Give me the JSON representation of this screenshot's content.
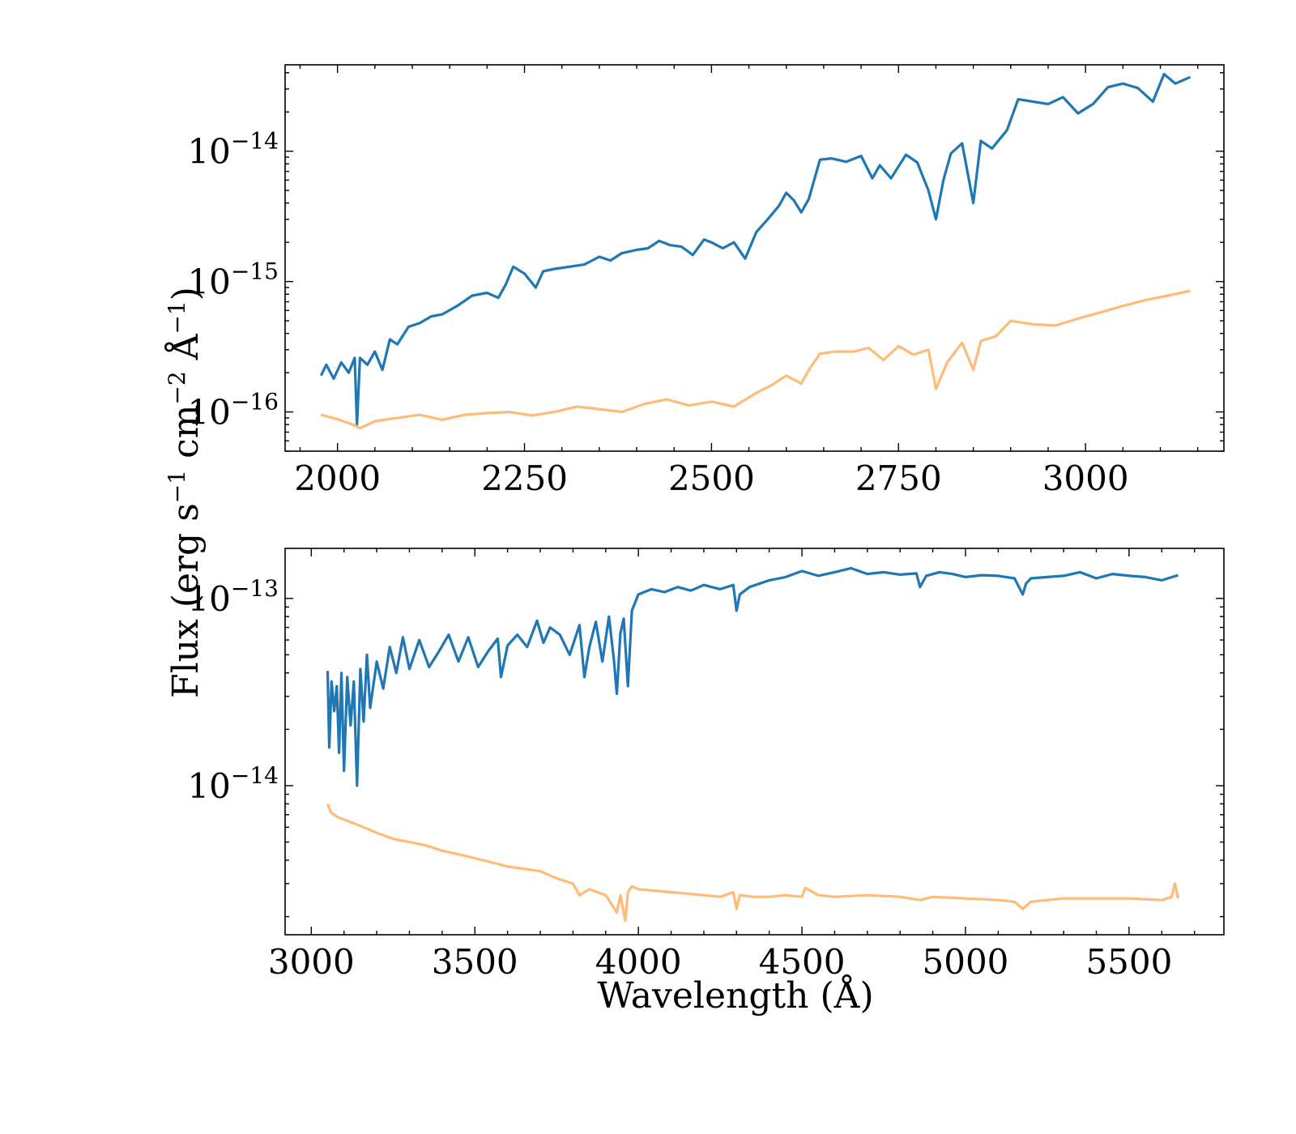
{
  "chart_data": [
    {
      "type": "line",
      "panel": "top",
      "xlabel": "",
      "ylabel": "Flux (erg s$^{-1}$ cm$^{-2}$ Å$^{-1}$)",
      "ylabel_parts": [
        "Flux (erg s",
        "−1",
        " cm",
        "−2",
        " Å",
        "−1",
        ")"
      ],
      "xlim": [
        1930,
        3185
      ],
      "ylim": [
        5e-17,
        4.6e-14
      ],
      "yscale": "log",
      "xticks": [
        2000,
        2250,
        2500,
        2750,
        3000
      ],
      "xtick_labels": [
        "2000",
        "2250",
        "2500",
        "2750",
        "3000"
      ],
      "yticks": [
        1e-16,
        1e-15,
        1e-14
      ],
      "ytick_labels": [
        {
          "base": "10",
          "exp": "−16"
        },
        {
          "base": "10",
          "exp": "−15"
        },
        {
          "base": "10",
          "exp": "−14"
        }
      ],
      "series": [
        {
          "color": "#1f77b4",
          "x": [
            1978,
            1985,
            1995,
            2005,
            2015,
            2023,
            2026,
            2030,
            2040,
            2050,
            2060,
            2070,
            2080,
            2095,
            2110,
            2125,
            2140,
            2160,
            2180,
            2200,
            2215,
            2225,
            2235,
            2250,
            2265,
            2275,
            2290,
            2310,
            2330,
            2350,
            2365,
            2380,
            2400,
            2415,
            2430,
            2445,
            2460,
            2475,
            2490,
            2500,
            2515,
            2530,
            2545,
            2560,
            2575,
            2590,
            2600,
            2610,
            2620,
            2630,
            2645,
            2660,
            2680,
            2700,
            2715,
            2725,
            2740,
            2760,
            2775,
            2790,
            2800,
            2810,
            2820,
            2835,
            2850,
            2860,
            2875,
            2895,
            2910,
            2930,
            2950,
            2970,
            2990,
            3010,
            3030,
            3050,
            3070,
            3090,
            3105,
            3120,
            3140
          ],
          "y": [
            1.9e-16,
            2.3e-16,
            1.8e-16,
            2.4e-16,
            2e-16,
            2.6e-16,
            8e-17,
            2.6e-16,
            2.3e-16,
            2.9e-16,
            2.1e-16,
            3.6e-16,
            3.3e-16,
            4.5e-16,
            4.8e-16,
            5.4e-16,
            5.6e-16,
            6.5e-16,
            7.8e-16,
            8.2e-16,
            7.5e-16,
            9.5e-16,
            1.3e-15,
            1.15e-15,
            9e-16,
            1.2e-15,
            1.25e-15,
            1.3e-15,
            1.35e-15,
            1.55e-15,
            1.45e-15,
            1.65e-15,
            1.75e-15,
            1.8e-15,
            2.05e-15,
            1.9e-15,
            1.85e-15,
            1.6e-15,
            2.1e-15,
            2e-15,
            1.8e-15,
            2e-15,
            1.5e-15,
            2.4e-15,
            3e-15,
            3.8e-15,
            4.8e-15,
            4.2e-15,
            3.4e-15,
            4.3e-15,
            8.6e-15,
            8.8e-15,
            8.3e-15,
            9.2e-15,
            6.2e-15,
            7.8e-15,
            6.2e-15,
            9.4e-15,
            8.2e-15,
            5e-15,
            3e-15,
            6e-15,
            9.6e-15,
            1.15e-14,
            4e-15,
            1.2e-14,
            1.05e-14,
            1.45e-14,
            2.5e-14,
            2.4e-14,
            2.3e-14,
            2.6e-14,
            1.95e-14,
            2.3e-14,
            3.1e-14,
            3.3e-14,
            3.05e-14,
            2.4e-14,
            3.9e-14,
            3.3e-14,
            3.7e-14
          ]
        },
        {
          "color": "#ffbb78",
          "x": [
            1978,
            2000,
            2020,
            2030,
            2050,
            2080,
            2110,
            2140,
            2170,
            2200,
            2230,
            2260,
            2290,
            2320,
            2350,
            2380,
            2410,
            2440,
            2470,
            2500,
            2530,
            2560,
            2580,
            2600,
            2620,
            2630,
            2645,
            2665,
            2690,
            2710,
            2730,
            2750,
            2770,
            2790,
            2800,
            2815,
            2835,
            2850,
            2860,
            2880,
            2900,
            2930,
            2960,
            2990,
            3020,
            3050,
            3080,
            3110,
            3140
          ],
          "y": [
            9.5e-17,
            8.8e-17,
            8e-17,
            7.5e-17,
            8.5e-17,
            9e-17,
            9.5e-17,
            8.7e-17,
            9.5e-17,
            9.8e-17,
            1e-16,
            9.4e-17,
            1e-16,
            1.1e-16,
            1.05e-16,
            1e-16,
            1.15e-16,
            1.25e-16,
            1.12e-16,
            1.2e-16,
            1.1e-16,
            1.4e-16,
            1.6e-16,
            1.9e-16,
            1.65e-16,
            2.1e-16,
            2.8e-16,
            2.9e-16,
            2.9e-16,
            3.1e-16,
            2.5e-16,
            3.2e-16,
            2.75e-16,
            3e-16,
            1.5e-16,
            2.4e-16,
            3.4e-16,
            2.1e-16,
            3.5e-16,
            3.8e-16,
            5e-16,
            4.7e-16,
            4.6e-16,
            5.2e-16,
            5.8e-16,
            6.5e-16,
            7.2e-16,
            7.8e-16,
            8.5e-16
          ]
        }
      ]
    },
    {
      "type": "line",
      "panel": "bottom",
      "xlabel": "Wavelength (Å)",
      "ylabel": "",
      "xlim": [
        2920,
        5790
      ],
      "ylim": [
        1.6e-15,
        1.85e-13
      ],
      "yscale": "log",
      "xticks": [
        3000,
        3500,
        4000,
        4500,
        5000,
        5500
      ],
      "xtick_labels": [
        "3000",
        "3500",
        "4000",
        "4500",
        "5000",
        "5500"
      ],
      "yticks": [
        1e-14,
        1e-13
      ],
      "ytick_labels": [
        {
          "base": "10",
          "exp": "−14"
        },
        {
          "base": "10",
          "exp": "−13"
        }
      ],
      "series": [
        {
          "color": "#1f77b4",
          "x": [
            3050,
            3055,
            3062,
            3070,
            3078,
            3085,
            3092,
            3100,
            3110,
            3120,
            3130,
            3140,
            3150,
            3160,
            3170,
            3180,
            3200,
            3220,
            3240,
            3260,
            3280,
            3300,
            3330,
            3360,
            3390,
            3420,
            3450,
            3480,
            3510,
            3540,
            3570,
            3580,
            3600,
            3630,
            3660,
            3690,
            3710,
            3730,
            3760,
            3790,
            3820,
            3835,
            3850,
            3870,
            3890,
            3910,
            3925,
            3934,
            3945,
            3955,
            3968,
            3980,
            4000,
            4040,
            4080,
            4120,
            4160,
            4200,
            4250,
            4290,
            4300,
            4310,
            4340,
            4400,
            4450,
            4500,
            4550,
            4600,
            4650,
            4700,
            4750,
            4800,
            4850,
            4861,
            4880,
            4920,
            4960,
            5000,
            5050,
            5100,
            5150,
            5175,
            5185,
            5200,
            5250,
            5300,
            5350,
            5400,
            5450,
            5500,
            5550,
            5600,
            5650
          ],
          "y": [
            4.1e-14,
            1.6e-14,
            3.6e-14,
            2.5e-14,
            3.4e-14,
            1.5e-14,
            4e-14,
            1.2e-14,
            3.8e-14,
            2.1e-14,
            3.6e-14,
            1e-14,
            4.2e-14,
            2.2e-14,
            5e-14,
            2.6e-14,
            4.6e-14,
            3.3e-14,
            5.5e-14,
            4e-14,
            6.2e-14,
            4.2e-14,
            6e-14,
            4.3e-14,
            5.2e-14,
            6.4e-14,
            4.6e-14,
            6.2e-14,
            4.3e-14,
            5.2e-14,
            6.1e-14,
            3.8e-14,
            5.6e-14,
            6.4e-14,
            5.5e-14,
            7.6e-14,
            5.8e-14,
            7e-14,
            6.4e-14,
            5e-14,
            7.2e-14,
            3.8e-14,
            5.5e-14,
            7.5e-14,
            4.6e-14,
            8e-14,
            4.7e-14,
            3.1e-14,
            6.5e-14,
            7.8e-14,
            3.4e-14,
            8.6e-14,
            1.05e-13,
            1.12e-13,
            1.08e-13,
            1.15e-13,
            1.1e-13,
            1.18e-13,
            1.12e-13,
            1.18e-13,
            8.6e-14,
            1.05e-13,
            1.15e-13,
            1.25e-13,
            1.3e-13,
            1.4e-13,
            1.32e-13,
            1.38e-13,
            1.45e-13,
            1.35e-13,
            1.38e-13,
            1.34e-13,
            1.36e-13,
            1.15e-13,
            1.32e-13,
            1.38e-13,
            1.35e-13,
            1.3e-13,
            1.33e-13,
            1.32e-13,
            1.28e-13,
            1.05e-13,
            1.2e-13,
            1.28e-13,
            1.3e-13,
            1.32e-13,
            1.38e-13,
            1.28e-13,
            1.35e-13,
            1.32e-13,
            1.3e-13,
            1.25e-13,
            1.33e-13
          ]
        },
        {
          "color": "#ffbb78",
          "x": [
            3050,
            3060,
            3080,
            3100,
            3130,
            3160,
            3200,
            3250,
            3300,
            3350,
            3400,
            3450,
            3500,
            3550,
            3600,
            3650,
            3700,
            3750,
            3800,
            3820,
            3850,
            3900,
            3920,
            3934,
            3945,
            3960,
            3968,
            3980,
            4000,
            4050,
            4100,
            4150,
            4200,
            4250,
            4290,
            4300,
            4310,
            4350,
            4400,
            4450,
            4500,
            4510,
            4550,
            4600,
            4700,
            4800,
            4861,
            4900,
            5000,
            5100,
            5150,
            5175,
            5200,
            5250,
            5300,
            5400,
            5500,
            5600,
            5630,
            5640,
            5650
          ],
          "y": [
            8e-15,
            7.2e-15,
            6.8e-15,
            6.6e-15,
            6.3e-15,
            6e-15,
            5.6e-15,
            5.2e-15,
            5e-15,
            4.8e-15,
            4.5e-15,
            4.3e-15,
            4.1e-15,
            3.9e-15,
            3.7e-15,
            3.6e-15,
            3.5e-15,
            3.2e-15,
            3e-15,
            2.6e-15,
            2.8e-15,
            2.6e-15,
            2.3e-15,
            2.1e-15,
            2.6e-15,
            1.9e-15,
            2.7e-15,
            2.9e-15,
            2.8e-15,
            2.75e-15,
            2.7e-15,
            2.65e-15,
            2.6e-15,
            2.55e-15,
            2.7e-15,
            2.2e-15,
            2.6e-15,
            2.55e-15,
            2.55e-15,
            2.6e-15,
            2.55e-15,
            2.85e-15,
            2.6e-15,
            2.55e-15,
            2.6e-15,
            2.55e-15,
            2.45e-15,
            2.55e-15,
            2.5e-15,
            2.45e-15,
            2.4e-15,
            2.2e-15,
            2.4e-15,
            2.45e-15,
            2.5e-15,
            2.5e-15,
            2.5e-15,
            2.45e-15,
            2.55e-15,
            3e-15,
            2.5e-15
          ]
        }
      ]
    }
  ]
}
